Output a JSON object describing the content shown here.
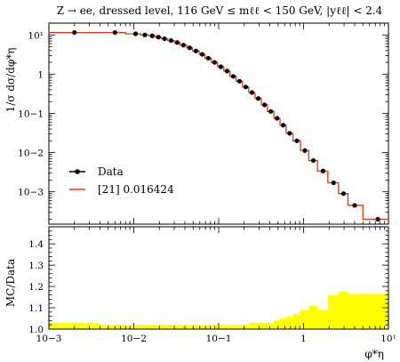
{
  "chart_data": [
    {
      "type": "line",
      "title": "Z → ee, dressed level, 116 GeV ≤ mℓℓ < 150 GeV, |yℓℓ| < 2.4",
      "xlabel": "",
      "ylabel": "1/σ dσ/dφ*η",
      "xscale": "log",
      "yscale": "log",
      "xlim": [
        0.001,
        10
      ],
      "ylim": [
        0.00015,
        20
      ],
      "y_ticks": [
        0.001,
        0.01,
        0.1,
        1,
        10
      ],
      "y_tick_labels": [
        "10−3",
        "10−2",
        "10−1",
        "1",
        "10¹"
      ],
      "legend_position": "lower-left",
      "series": [
        {
          "name": "Data",
          "style": "points",
          "color": "#000000",
          "x": [
            0.002,
            0.006,
            0.0105,
            0.0135,
            0.0165,
            0.0195,
            0.023,
            0.0275,
            0.0325,
            0.0385,
            0.0455,
            0.054,
            0.064,
            0.0755,
            0.0895,
            0.106,
            0.1255,
            0.1485,
            0.176,
            0.2085,
            0.247,
            0.293,
            0.347,
            0.4115,
            0.4875,
            0.575,
            0.685,
            0.835,
            1.035,
            1.305,
            1.695,
            2.255,
            2.955,
            4.0,
            7.5
          ],
          "y": [
            11.5,
            11.5,
            10.7,
            10.0,
            9.5,
            8.8,
            8.0,
            7.2,
            6.4,
            5.5,
            4.7,
            3.9,
            3.2,
            2.55,
            2.0,
            1.55,
            1.2,
            0.88,
            0.66,
            0.47,
            0.34,
            0.24,
            0.165,
            0.112,
            0.075,
            0.05,
            0.031,
            0.02,
            0.0113,
            0.0063,
            0.0034,
            0.0017,
            0.0009,
            0.00045,
            0.0002
          ]
        },
        {
          "name": "[21] 0.016424",
          "style": "step",
          "color": "#EE3311",
          "edges": [
            0.001,
            0.004,
            0.008,
            0.012,
            0.015,
            0.018,
            0.021,
            0.025,
            0.03,
            0.035,
            0.042,
            0.049,
            0.059,
            0.069,
            0.082,
            0.097,
            0.115,
            0.136,
            0.161,
            0.191,
            0.226,
            0.268,
            0.318,
            0.376,
            0.447,
            0.528,
            0.623,
            0.75,
            0.92,
            1.15,
            1.46,
            1.93,
            2.58,
            3.33,
            5.0,
            10.0
          ],
          "values": [
            11.5,
            11.5,
            10.7,
            10.0,
            9.5,
            8.8,
            8.0,
            7.2,
            6.4,
            5.5,
            4.7,
            3.9,
            3.2,
            2.55,
            2.0,
            1.55,
            1.2,
            0.88,
            0.66,
            0.47,
            0.34,
            0.24,
            0.165,
            0.112,
            0.075,
            0.05,
            0.031,
            0.02,
            0.0113,
            0.0063,
            0.0034,
            0.0017,
            0.0009,
            0.00045,
            0.0002
          ]
        }
      ]
    },
    {
      "type": "area",
      "xlabel": "φ*η",
      "ylabel": "MC/Data",
      "xscale": "log",
      "xlim": [
        0.001,
        10
      ],
      "ylim": [
        1.0,
        1.48
      ],
      "x_ticks": [
        0.001,
        0.01,
        0.1,
        1,
        10
      ],
      "x_tick_labels": [
        "10−3",
        "10−2",
        "10−1",
        "1",
        "10¹"
      ],
      "y_ticks": [
        1.0,
        1.1,
        1.2,
        1.3,
        1.4
      ],
      "y_tick_labels": [
        "1.0",
        "1.1",
        "1.2",
        "1.3",
        "1.4"
      ],
      "band_color": "#FFFF00",
      "edges": [
        0.001,
        0.004,
        0.008,
        0.012,
        0.015,
        0.018,
        0.021,
        0.025,
        0.03,
        0.035,
        0.042,
        0.049,
        0.059,
        0.069,
        0.082,
        0.097,
        0.115,
        0.136,
        0.161,
        0.191,
        0.226,
        0.268,
        0.318,
        0.376,
        0.447,
        0.528,
        0.623,
        0.75,
        0.92,
        1.15,
        1.46,
        1.93,
        2.58,
        3.33,
        5.0,
        10.0
      ],
      "band_high": [
        1.03,
        1.02,
        1.02,
        1.02,
        1.02,
        1.02,
        1.02,
        1.02,
        1.02,
        1.02,
        1.02,
        1.02,
        1.02,
        1.02,
        1.02,
        1.02,
        1.02,
        1.02,
        1.02,
        1.02,
        1.03,
        1.03,
        1.03,
        1.03,
        1.04,
        1.05,
        1.06,
        1.07,
        1.09,
        1.11,
        1.09,
        1.16,
        1.175,
        1.165,
        1.165
      ],
      "band_low": [
        1.0,
        1.0,
        1.0,
        1.0,
        1.0,
        1.0,
        1.0,
        1.0,
        1.0,
        1.0,
        1.0,
        1.0,
        1.0,
        1.0,
        1.0,
        1.0,
        1.0,
        1.0,
        1.0,
        1.0,
        1.0,
        1.0,
        1.0,
        1.0,
        1.0,
        1.0,
        1.0,
        1.0,
        1.0,
        1.0,
        1.0,
        1.0,
        1.0,
        1.0,
        1.0
      ]
    }
  ]
}
